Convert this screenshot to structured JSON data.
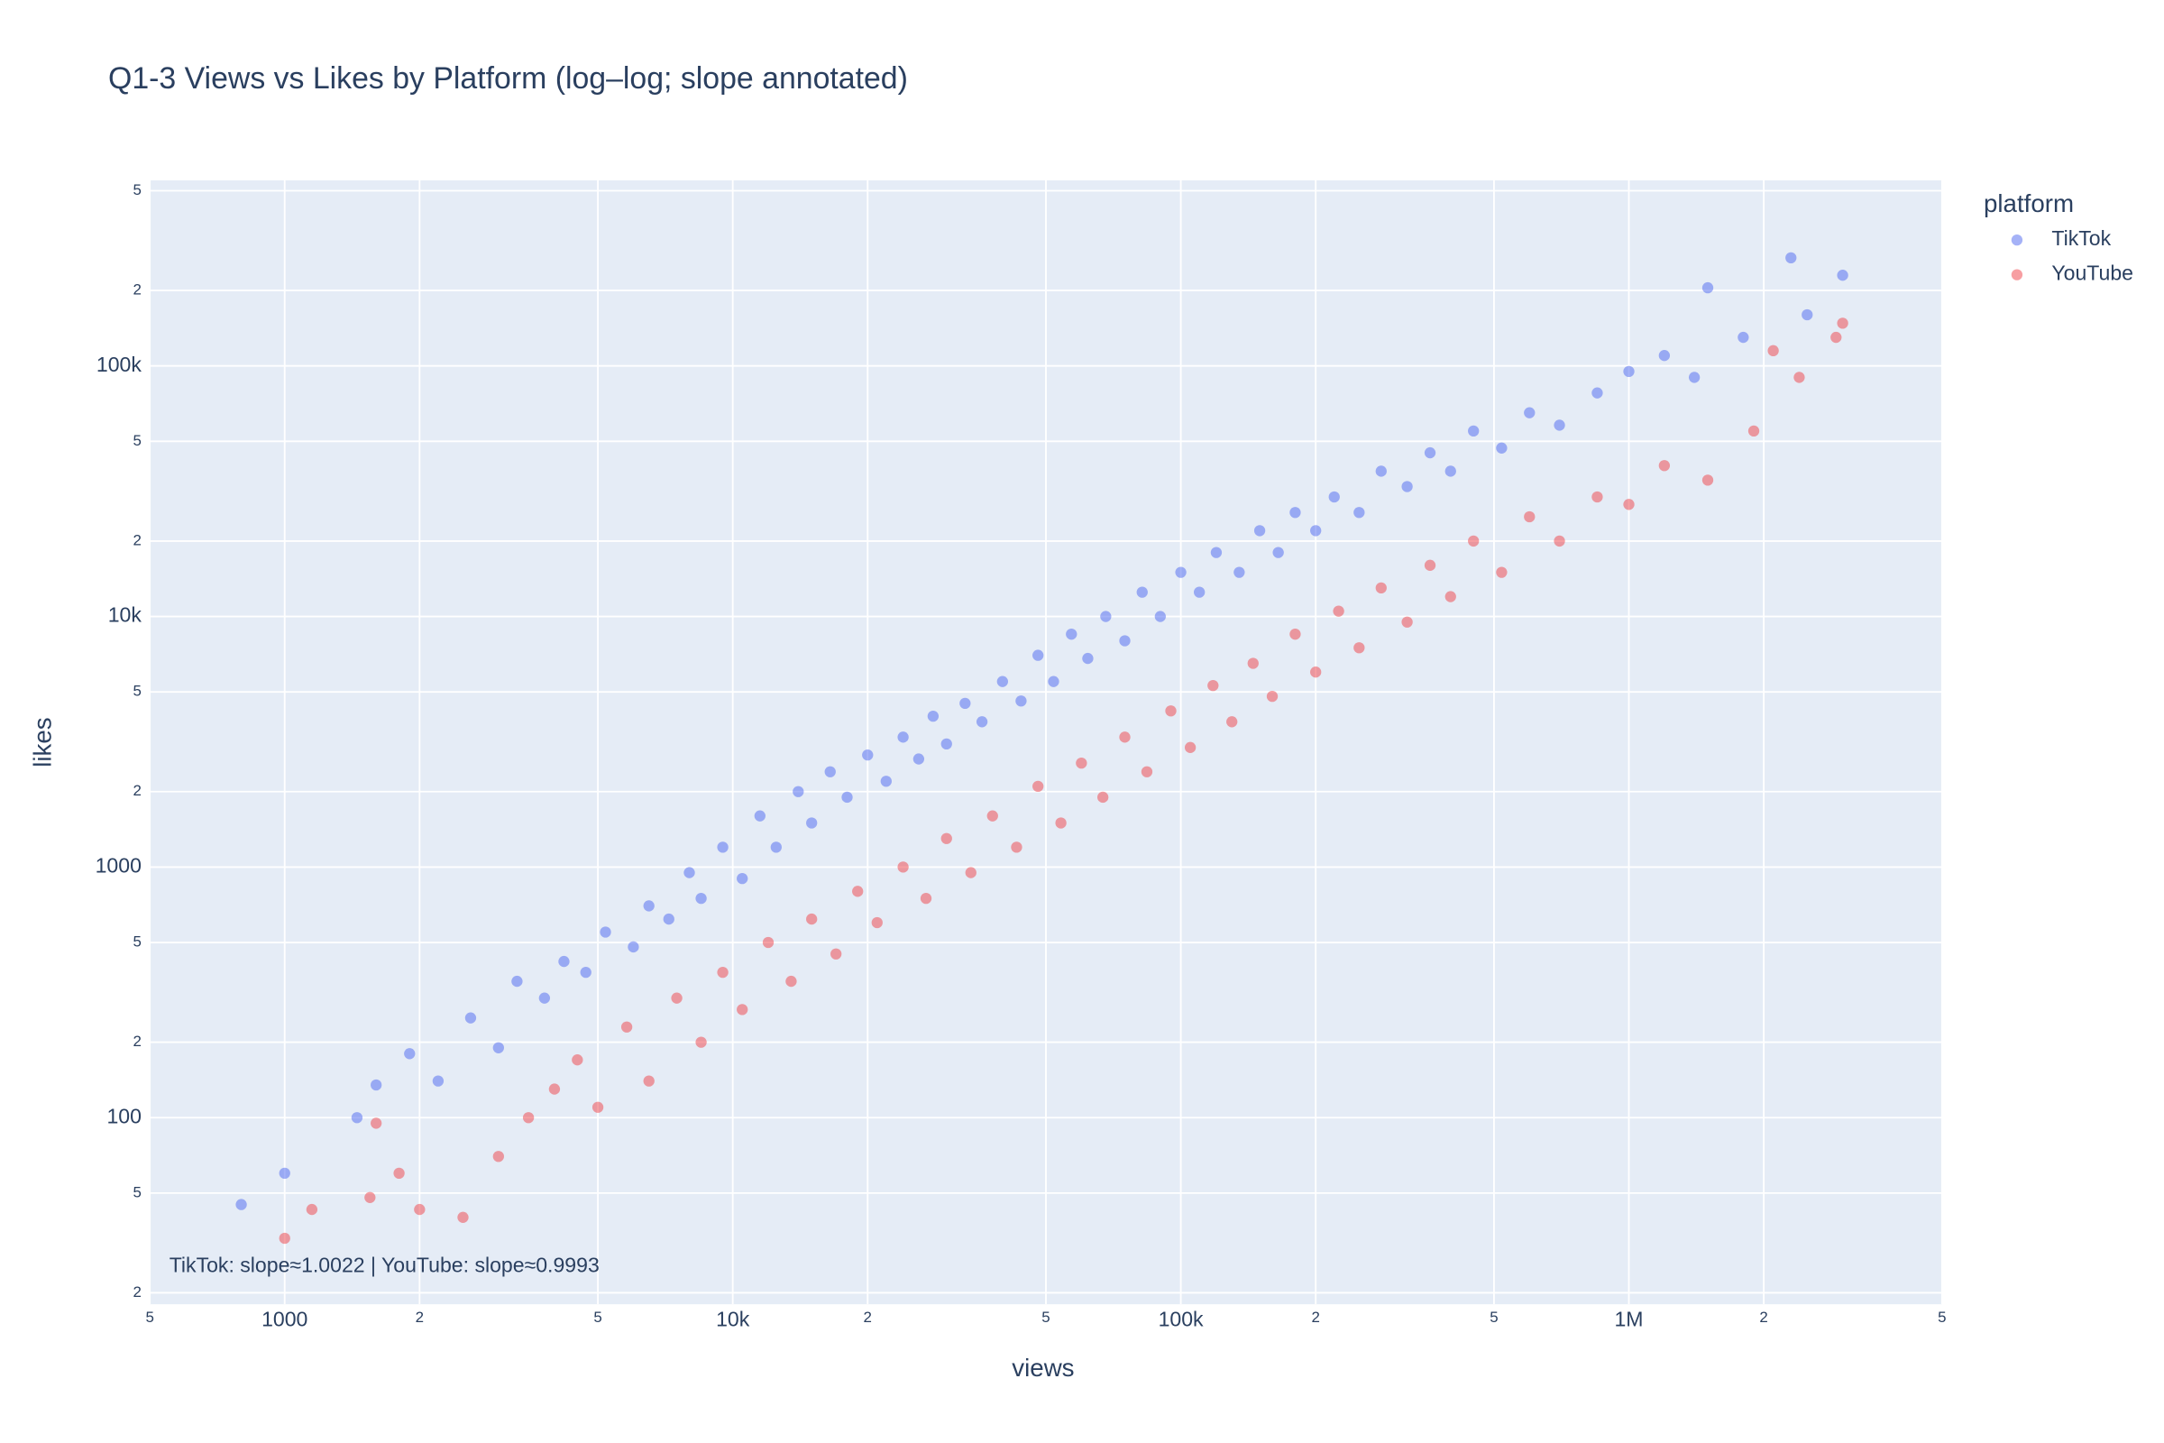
{
  "chart_data": {
    "type": "scatter",
    "title": "Q1-3 Views vs Likes by Platform (log–log; slope annotated)",
    "x_label": "views",
    "y_label": "likes",
    "legend_title": "platform",
    "legend_position": "right",
    "annotation": "TikTok: slope≈1.0022 | YouTube: slope≈0.9993",
    "log_x": true,
    "log_y": true,
    "grid": true,
    "xlim": [
      500,
      5000000
    ],
    "ylim": [
      18,
      550000
    ],
    "xticks": [
      {
        "value": 500,
        "label": "5"
      },
      1000,
      {
        "value": 2000,
        "label": "2"
      },
      {
        "value": 5000,
        "label": "5"
      },
      {
        "value": 10000,
        "label": "10k"
      },
      {
        "value": 20000,
        "label": "2"
      },
      {
        "value": 50000,
        "label": "5"
      },
      {
        "value": 100000,
        "label": "100k"
      },
      {
        "value": 200000,
        "label": "2"
      },
      {
        "value": 500000,
        "label": "5"
      },
      {
        "value": 1000000,
        "label": "1M"
      },
      {
        "value": 2000000,
        "label": "2"
      },
      {
        "value": 5000000,
        "label": "5"
      }
    ],
    "yticks": [
      {
        "value": 20,
        "label": "2"
      },
      {
        "value": 50,
        "label": "5"
      },
      100,
      {
        "value": 200,
        "label": "2"
      },
      {
        "value": 500,
        "label": "5"
      },
      1000,
      {
        "value": 2000,
        "label": "2"
      },
      {
        "value": 5000,
        "label": "5"
      },
      {
        "value": 10000,
        "label": "10k"
      },
      {
        "value": 20000,
        "label": "2"
      },
      {
        "value": 50000,
        "label": "5"
      },
      {
        "value": 100000,
        "label": "100k"
      },
      {
        "value": 200000,
        "label": "2"
      },
      {
        "value": 500000,
        "label": "5"
      }
    ],
    "series": [
      {
        "name": "TikTok",
        "color": "#4c66f0",
        "x": [
          800,
          1000,
          1450,
          1600,
          1900,
          2200,
          2600,
          3000,
          3300,
          3800,
          4200,
          4700,
          5200,
          6000,
          6500,
          7200,
          8000,
          8500,
          9500,
          10500,
          11500,
          12500,
          14000,
          15000,
          16500,
          18000,
          20000,
          22000,
          24000,
          26000,
          28000,
          30000,
          33000,
          36000,
          40000,
          44000,
          48000,
          52000,
          57000,
          62000,
          68000,
          75000,
          82000,
          90000,
          100000,
          110000,
          120000,
          135000,
          150000,
          165000,
          180000,
          200000,
          220000,
          250000,
          280000,
          320000,
          360000,
          400000,
          450000,
          520000,
          600000,
          700000,
          850000,
          1000000,
          1200000,
          1400000,
          1500000,
          1800000,
          2300000,
          2500000,
          3000000
        ],
        "values": [
          45,
          60,
          100,
          135,
          180,
          140,
          250,
          190,
          350,
          300,
          420,
          380,
          550,
          480,
          700,
          620,
          950,
          750,
          1200,
          900,
          1600,
          1200,
          2000,
          1500,
          2400,
          1900,
          2800,
          2200,
          3300,
          2700,
          4000,
          3100,
          4500,
          3800,
          5500,
          4600,
          7000,
          5500,
          8500,
          6800,
          10000,
          8000,
          12500,
          10000,
          15000,
          12500,
          18000,
          15000,
          22000,
          18000,
          26000,
          22000,
          30000,
          26000,
          38000,
          33000,
          45000,
          38000,
          55000,
          47000,
          65000,
          58000,
          78000,
          95000,
          110000,
          90000,
          205000,
          130000,
          270000,
          160000,
          230000
        ]
      },
      {
        "name": "YouTube",
        "color": "#ef4045",
        "x": [
          1000,
          1150,
          1550,
          1600,
          1800,
          2000,
          2500,
          3000,
          3500,
          4000,
          4500,
          5000,
          5800,
          6500,
          7500,
          8500,
          9500,
          10500,
          12000,
          13500,
          15000,
          17000,
          19000,
          21000,
          24000,
          27000,
          30000,
          34000,
          38000,
          43000,
          48000,
          54000,
          60000,
          67000,
          75000,
          84000,
          95000,
          105000,
          118000,
          130000,
          145000,
          160000,
          180000,
          200000,
          225000,
          250000,
          280000,
          320000,
          360000,
          400000,
          450000,
          520000,
          600000,
          700000,
          850000,
          1000000,
          1200000,
          1500000,
          1900000,
          2100000,
          2400000,
          2900000,
          3000000
        ],
        "values": [
          33,
          43,
          48,
          95,
          60,
          43,
          40,
          70,
          100,
          130,
          170,
          110,
          230,
          140,
          300,
          200,
          380,
          270,
          500,
          350,
          620,
          450,
          800,
          600,
          1000,
          750,
          1300,
          950,
          1600,
          1200,
          2100,
          1500,
          2600,
          1900,
          3300,
          2400,
          4200,
          3000,
          5300,
          3800,
          6500,
          4800,
          8500,
          6000,
          10500,
          7500,
          13000,
          9500,
          16000,
          12000,
          20000,
          15000,
          25000,
          20000,
          30000,
          28000,
          40000,
          35000,
          55000,
          115000,
          90000,
          130000,
          148000
        ]
      }
    ]
  }
}
